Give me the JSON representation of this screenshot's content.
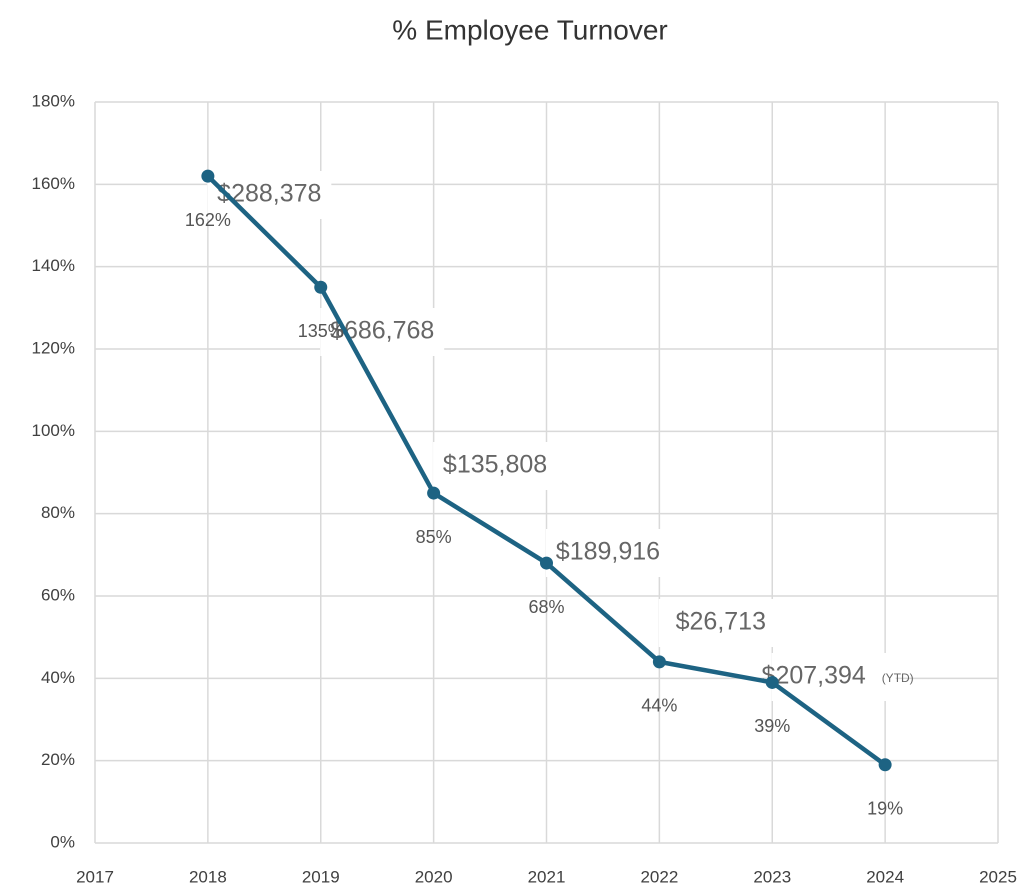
{
  "chart_data": {
    "type": "line",
    "title": "% Employee Turnover",
    "x": [
      2018,
      2019,
      2020,
      2021,
      2022,
      2023,
      2024
    ],
    "series": [
      {
        "name": "% Employee Turnover",
        "color": "#1d6383",
        "values": [
          162,
          135,
          85,
          68,
          44,
          39,
          19
        ],
        "value_labels": [
          "162%",
          "135%",
          "85%",
          "68%",
          "44%",
          "39%",
          "19%"
        ]
      }
    ],
    "xlim": [
      2017,
      2025
    ],
    "xticks": [
      2017,
      2018,
      2019,
      2020,
      2021,
      2022,
      2023,
      2024,
      2025
    ],
    "ylim": [
      0,
      180
    ],
    "yticks": [
      {
        "value": 0,
        "label": "0%"
      },
      {
        "value": 20,
        "label": "20%"
      },
      {
        "value": 40,
        "label": "40%"
      },
      {
        "value": 60,
        "label": "60%"
      },
      {
        "value": 80,
        "label": "80%"
      },
      {
        "value": 100,
        "label": "100%"
      },
      {
        "value": 120,
        "label": "120%"
      },
      {
        "value": 140,
        "label": "140%"
      },
      {
        "value": 160,
        "label": "160%"
      },
      {
        "value": 180,
        "label": "180%"
      }
    ],
    "annotations": [
      "$288,378",
      "$686,768",
      "$135,808",
      "$189,916",
      "$26,713",
      "$207,394"
    ],
    "annotation_note": "(YTD)",
    "grid": true
  }
}
